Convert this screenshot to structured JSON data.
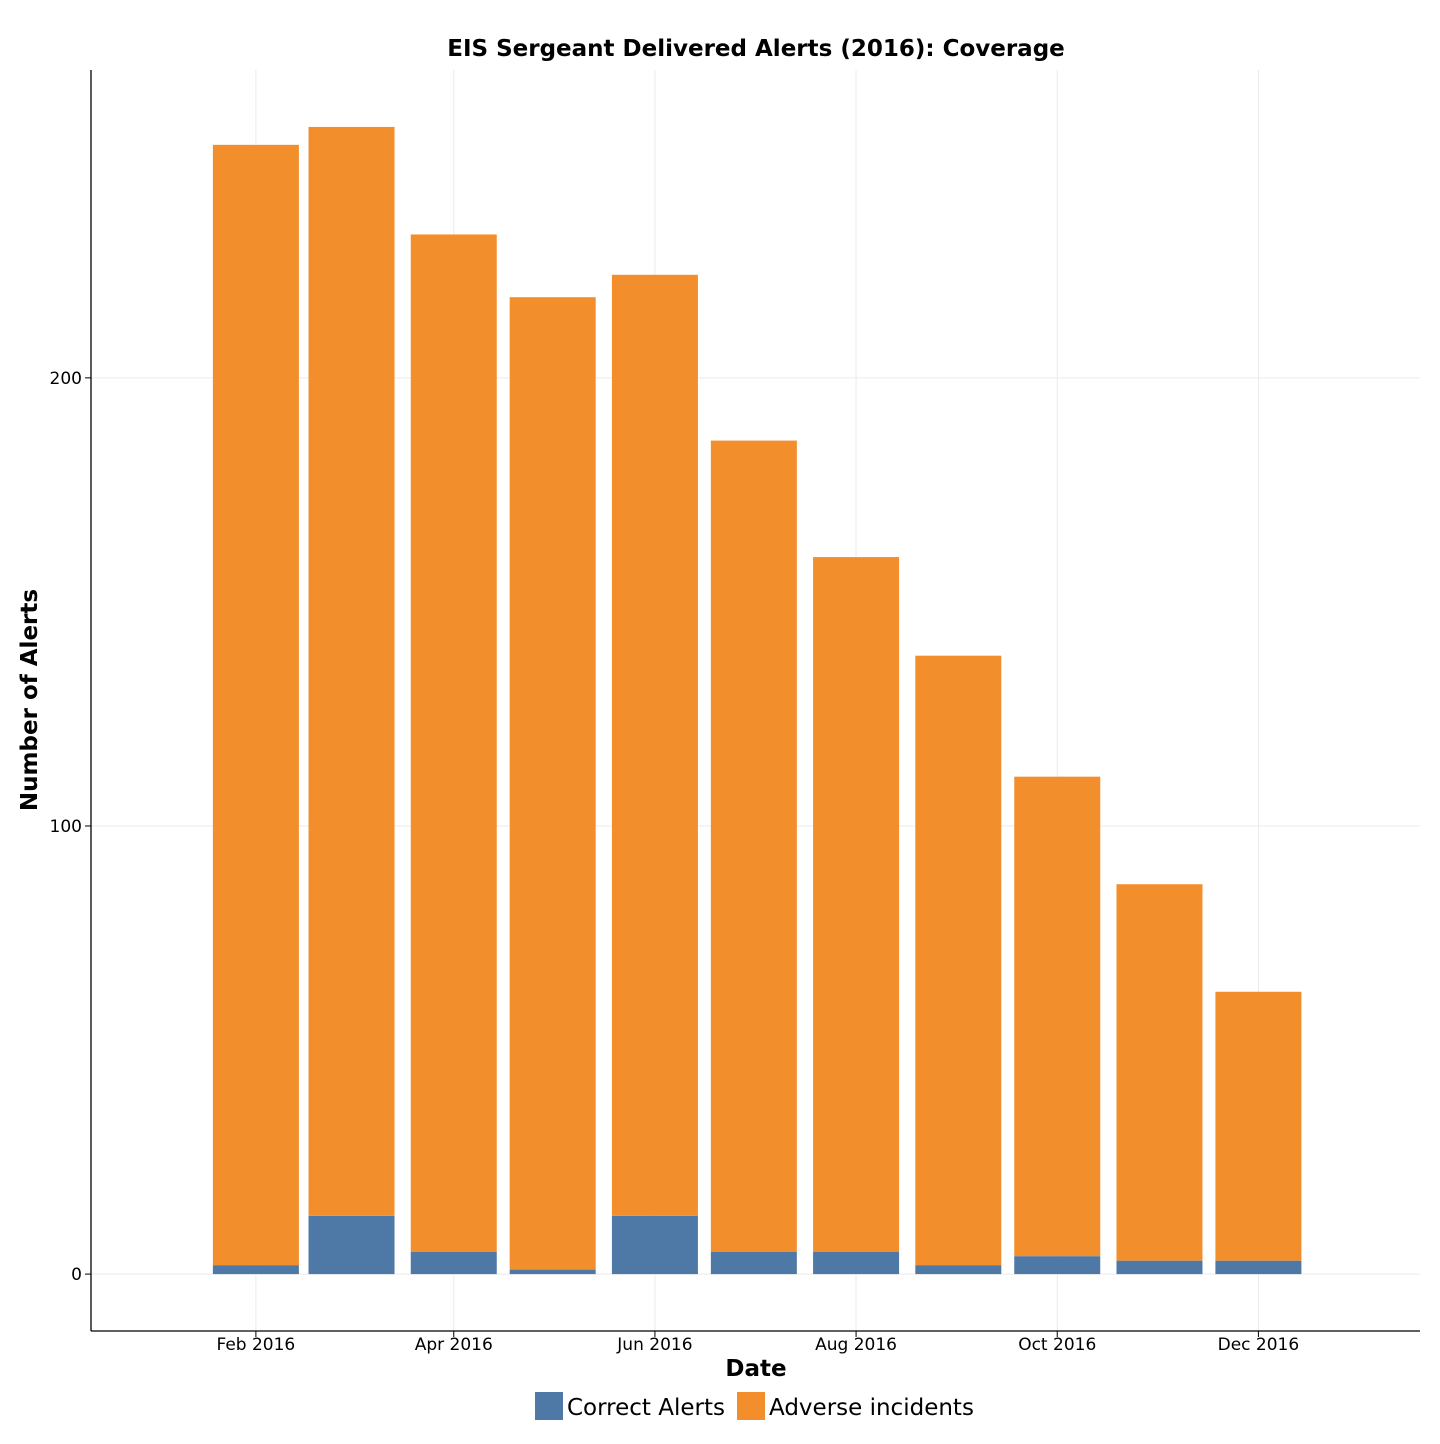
{
  "chart_data": {
    "type": "bar",
    "stacked": true,
    "title": "EIS Sergeant Delivered Alerts (2016): Coverage",
    "xlabel": "Date",
    "ylabel": "Number of Alerts",
    "categories": [
      "2016-02-01",
      "2016-03-01",
      "2016-04-01",
      "2016-05-01",
      "2016-06-01",
      "2016-07-01",
      "2016-08-01",
      "2016-09-01",
      "2016-10-01",
      "2016-11-01",
      "2016-12-01"
    ],
    "series": [
      {
        "name": "Correct Alerts",
        "color": "#4e79a7",
        "values": [
          2,
          13,
          5,
          1,
          13,
          5,
          5,
          2,
          4,
          3,
          3
        ]
      },
      {
        "name": "Adverse incidents",
        "color": "#f28e2b",
        "values": [
          250,
          243,
          227,
          217,
          210,
          181,
          155,
          136,
          107,
          84,
          60
        ]
      }
    ],
    "x_ticks": [
      {
        "date": "2016-02-01",
        "label": "Feb 2016"
      },
      {
        "date": "2016-04-01",
        "label": "Apr 2016"
      },
      {
        "date": "2016-06-01",
        "label": "Jun 2016"
      },
      {
        "date": "2016-08-01",
        "label": "Aug 2016"
      },
      {
        "date": "2016-10-01",
        "label": "Oct 2016"
      },
      {
        "date": "2016-12-01",
        "label": "Dec 2016"
      }
    ],
    "y_ticks": [
      0,
      100,
      200
    ],
    "xlim": [
      "2015-12-13",
      "2017-01-19"
    ],
    "ylim": [
      -12.7,
      268.7
    ],
    "grid": true,
    "legend_position": "bottom"
  }
}
